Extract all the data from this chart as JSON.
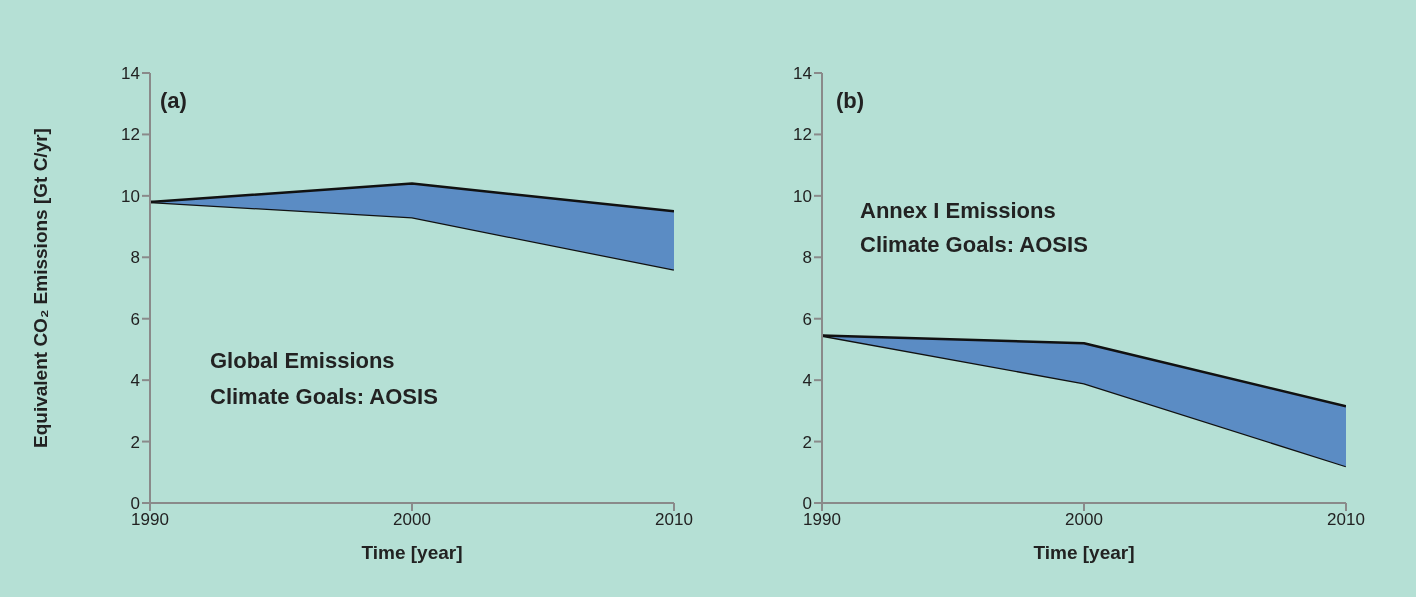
{
  "chart_data": [
    {
      "type": "area",
      "ylabel": "Equivalent CO₂  Emissions [Gt C/yr]",
      "xlabel": "Time [year]",
      "x": [
        1990,
        2000,
        2010
      ],
      "stacked": true,
      "series": [
        {
          "color": "#b5e0d5",
          "values": [
            9.8,
            9.3,
            7.6
          ]
        },
        {
          "color": "#5b8cc4",
          "values": [
            0,
            1.1,
            1.9
          ]
        }
      ],
      "xlim": [
        1990,
        2010
      ],
      "xticks": [
        1990,
        2000,
        2010
      ],
      "ylim": [
        0,
        14
      ],
      "yticks": [
        0,
        2,
        4,
        6,
        8,
        10,
        12,
        14
      ],
      "grid": false,
      "legend": false,
      "annotations": [
        "(a)",
        "Global Emissions",
        "Climate Goals: AOSIS"
      ]
    },
    {
      "type": "area",
      "xlabel": "Time [year]",
      "x": [
        1990,
        2000,
        2010
      ],
      "stacked": true,
      "series": [
        {
          "color": "#b5e0d5",
          "values": [
            5.45,
            3.9,
            1.2
          ]
        },
        {
          "color": "#5b8cc4",
          "values": [
            0,
            1.3,
            1.95
          ]
        }
      ],
      "xlim": [
        1990,
        2010
      ],
      "xticks": [
        1990,
        2000,
        2010
      ],
      "ylim": [
        0,
        14
      ],
      "yticks": [
        0,
        2,
        4,
        6,
        8,
        10,
        12,
        14
      ],
      "grid": false,
      "legend": false,
      "annotations": [
        "(b)",
        "Annex I Emissions",
        "Climate Goals: AOSIS"
      ]
    }
  ]
}
